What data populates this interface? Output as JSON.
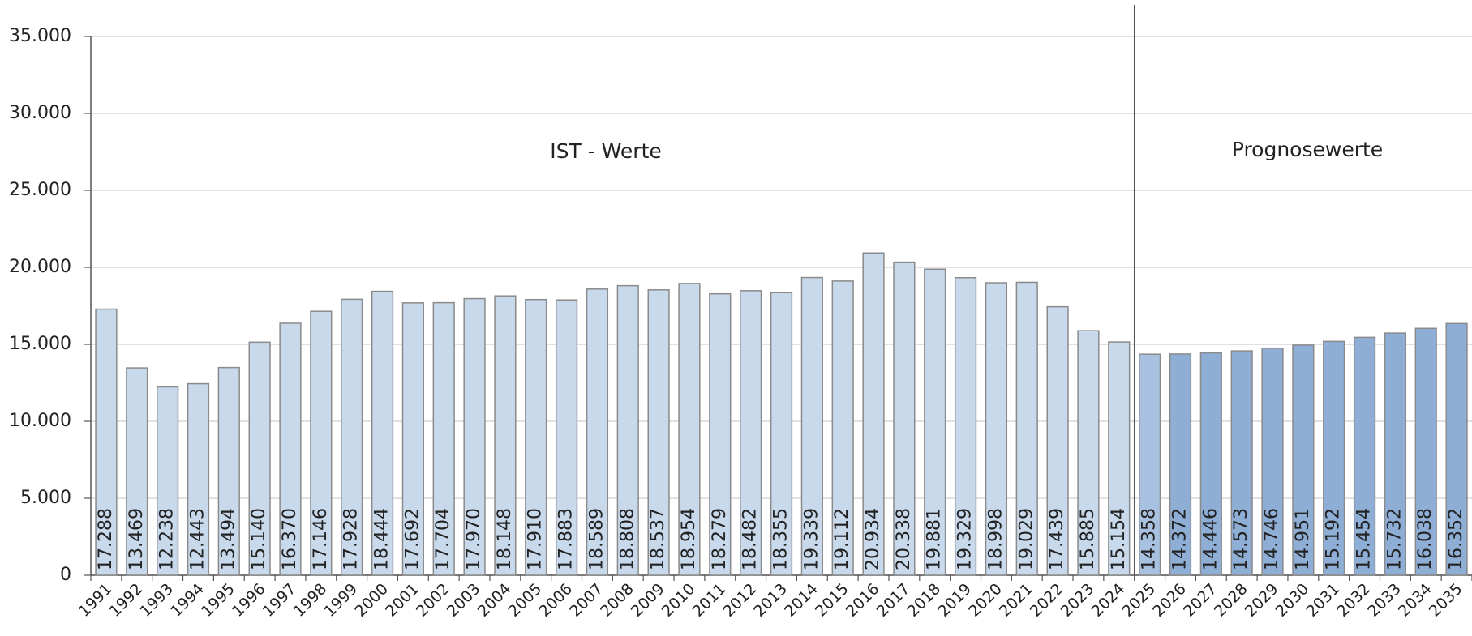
{
  "chart_data": {
    "type": "bar",
    "categories": [
      "1991",
      "1992",
      "1993",
      "1994",
      "1995",
      "1996",
      "1997",
      "1998",
      "1999",
      "2000",
      "2001",
      "2002",
      "2003",
      "2004",
      "2005",
      "2006",
      "2007",
      "2008",
      "2009",
      "2010",
      "2011",
      "2012",
      "2013",
      "2014",
      "2015",
      "2016",
      "2017",
      "2018",
      "2019",
      "2020",
      "2021",
      "2022",
      "2023",
      "2024",
      "2025",
      "2026",
      "2027",
      "2028",
      "2029",
      "2030",
      "2031",
      "2032",
      "2033",
      "2034",
      "2035"
    ],
    "values": [
      17288,
      13469,
      12238,
      12443,
      13494,
      15140,
      16370,
      17146,
      17928,
      18444,
      17692,
      17704,
      17970,
      18148,
      17910,
      17883,
      18589,
      18808,
      18537,
      18954,
      18279,
      18482,
      18355,
      19339,
      19112,
      20934,
      20338,
      19881,
      19329,
      18998,
      19029,
      17439,
      15885,
      15154,
      14358,
      14372,
      14446,
      14573,
      14746,
      14951,
      15192,
      15454,
      15732,
      16038,
      16352
    ],
    "value_labels": [
      "17.288",
      "13.469",
      "12.238",
      "12.443",
      "13.494",
      "15.140",
      "16.370",
      "17.146",
      "17.928",
      "18.444",
      "17.692",
      "17.704",
      "17.970",
      "18.148",
      "17.910",
      "17.883",
      "18.589",
      "18.808",
      "18.537",
      "18.954",
      "18.279",
      "18.482",
      "18.355",
      "19.339",
      "19.112",
      "20.934",
      "20.338",
      "19.881",
      "19.329",
      "18.998",
      "19.029",
      "17.439",
      "15.885",
      "15.154",
      "14.358",
      "14.372",
      "14.446",
      "14.573",
      "14.746",
      "14.951",
      "15.192",
      "15.454",
      "15.732",
      "16.038",
      "16.352"
    ],
    "colors": [
      "#c9d9ec",
      "#c9d9ec",
      "#c9d9ec",
      "#c9d9ec",
      "#c9d9ec",
      "#c9d9ec",
      "#c9d9ec",
      "#c9d9ec",
      "#c9d9ec",
      "#c9d9ec",
      "#c9d9ec",
      "#c9d9ec",
      "#c9d9ec",
      "#c9d9ec",
      "#c9d9ec",
      "#c9d9ec",
      "#c9d9ec",
      "#c9d9ec",
      "#c9d9ec",
      "#c9d9ec",
      "#c9d9ec",
      "#c9d9ec",
      "#c9d9ec",
      "#c9d9ec",
      "#c9d9ec",
      "#c9d9ec",
      "#c9d9ec",
      "#c9d9ec",
      "#c9d9ec",
      "#c9d9ec",
      "#c9d9ec",
      "#c9d9ec",
      "#c9d9ec",
      "#c9d9ec",
      "#a9c1e0",
      "#8eaed6",
      "#8eaed6",
      "#8eaed6",
      "#8eaed6",
      "#8eaed6",
      "#8eaed6",
      "#8eaed6",
      "#8eaed6",
      "#8eaed6",
      "#8eaed6"
    ],
    "ylim": [
      0,
      35000
    ],
    "yticks": [
      0,
      {
        "value": 5000,
        "label": "5.000"
      },
      {
        "value": 10000,
        "label": "10.000"
      },
      {
        "value": 15000,
        "label": "15.000"
      },
      {
        "value": 20000,
        "label": "20.000"
      },
      {
        "value": 25000,
        "label": "25.000"
      },
      {
        "value": 30000,
        "label": "30.000"
      },
      {
        "value": 35000,
        "label": "35.000"
      }
    ],
    "grid": true,
    "annotations": [
      "IST - Werte",
      "Prognosewerte"
    ]
  }
}
